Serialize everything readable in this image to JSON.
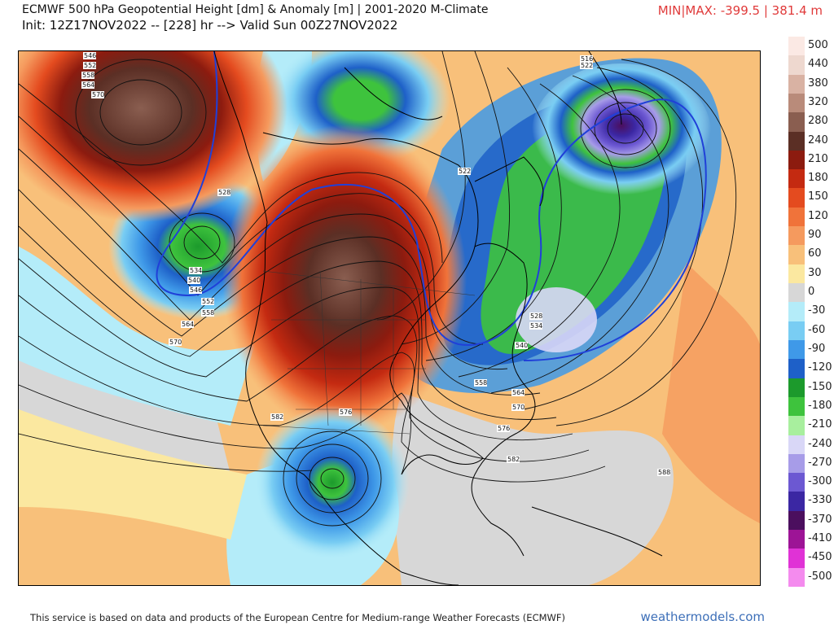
{
  "header": {
    "title_line1": "ECMWF 500 hPa Geopotential Height [dm] & Anomaly [m] | 2001-2020 M-Climate",
    "title_line2": "Init: 12Z17NOV2022 -- [228] hr --> Valid Sun 00Z27NOV2022",
    "minmax": "MIN|MAX: -399.5 | 381.4 m",
    "minmax_color": "#e03a3a"
  },
  "colorbar": {
    "items": [
      {
        "label": "500",
        "color": "#fbe9e4"
      },
      {
        "label": "440",
        "color": "#eed8cf"
      },
      {
        "label": "380",
        "color": "#d9b2a3"
      },
      {
        "label": "320",
        "color": "#b98b7a"
      },
      {
        "label": "280",
        "color": "#8a5e50"
      },
      {
        "label": "240",
        "color": "#5b2f25"
      },
      {
        "label": "210",
        "color": "#8c1b0f"
      },
      {
        "label": "180",
        "color": "#c42a11"
      },
      {
        "label": "150",
        "color": "#e44b1f"
      },
      {
        "label": "120",
        "color": "#f0733a"
      },
      {
        "label": "90",
        "color": "#f59a5e"
      },
      {
        "label": "60",
        "color": "#f8c07a"
      },
      {
        "label": "30",
        "color": "#fbe8a0"
      },
      {
        "label": "0",
        "color": "#d7d7d7"
      },
      {
        "label": "-30",
        "color": "#b4ecf9"
      },
      {
        "label": "-60",
        "color": "#79cdf3"
      },
      {
        "label": "-90",
        "color": "#3f99e8"
      },
      {
        "label": "-120",
        "color": "#1e60c8"
      },
      {
        "label": "-150",
        "color": "#1c9a2c"
      },
      {
        "label": "-180",
        "color": "#3ec33d"
      },
      {
        "label": "-210",
        "color": "#a8ef9e"
      },
      {
        "label": "-240",
        "color": "#d9d7f7"
      },
      {
        "label": "-270",
        "color": "#a79ce8"
      },
      {
        "label": "-300",
        "color": "#6c58d2"
      },
      {
        "label": "-330",
        "color": "#3b27a3"
      },
      {
        "label": "-370",
        "color": "#4b0f5e"
      },
      {
        "label": "-410",
        "color": "#9d1496"
      },
      {
        "label": "-450",
        "color": "#e032d6"
      },
      {
        "label": "-500",
        "color": "#f48bee"
      }
    ]
  },
  "map": {
    "contour_labels": [
      "546",
      "552",
      "558",
      "564",
      "570",
      "528",
      "534",
      "540",
      "546",
      "552",
      "558",
      "564",
      "570",
      "522",
      "516",
      "522",
      "582",
      "576",
      "528",
      "534",
      "540",
      "558",
      "564",
      "570",
      "576",
      "582",
      "588"
    ],
    "features": {
      "anomaly_highs": [
        "northeast-pacific-ridge",
        "western-north-america-ridge"
      ],
      "anomaly_lows": [
        "gulf-of-alaska-trough",
        "eastern-canada-trough",
        "labrador-sea-low",
        "northern-mexico-cutoff-low"
      ]
    }
  },
  "footer": {
    "attribution": "This service is based on data and products of the European Centre for Medium-range Weather Forecasts (ECMWF)",
    "brand": "weathermodels.com"
  }
}
